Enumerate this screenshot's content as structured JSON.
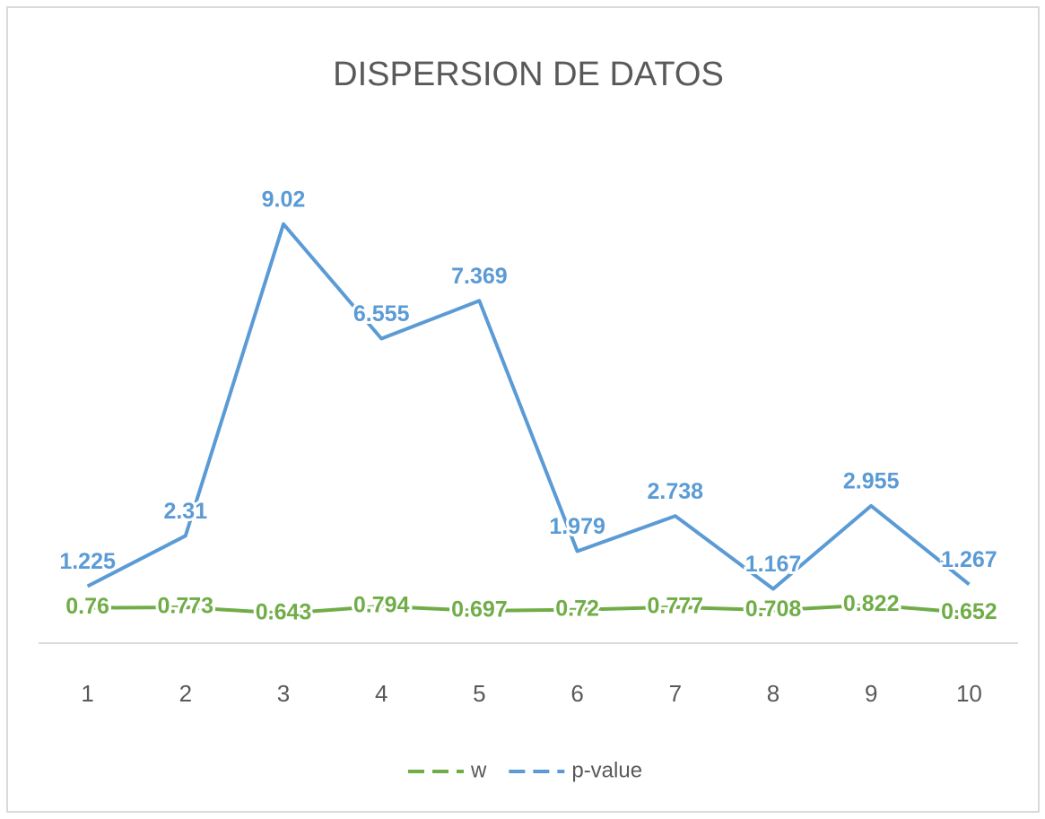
{
  "chart_data": {
    "type": "line",
    "title": "DISPERSION DE DATOS",
    "categories": [
      "1",
      "2",
      "3",
      "4",
      "5",
      "6",
      "7",
      "8",
      "9",
      "10"
    ],
    "series": [
      {
        "name": "w",
        "color": "#70ad47",
        "values": [
          0.76,
          0.773,
          0.643,
          0.794,
          0.697,
          0.72,
          0.777,
          0.708,
          0.822,
          0.652
        ]
      },
      {
        "name": "p-value",
        "color": "#5b9bd5",
        "values": [
          1.225,
          2.31,
          9.02,
          6.555,
          7.369,
          1.979,
          2.738,
          1.167,
          2.955,
          1.267
        ]
      }
    ],
    "ylim": [
      0,
      10
    ],
    "legend": "bottom"
  }
}
